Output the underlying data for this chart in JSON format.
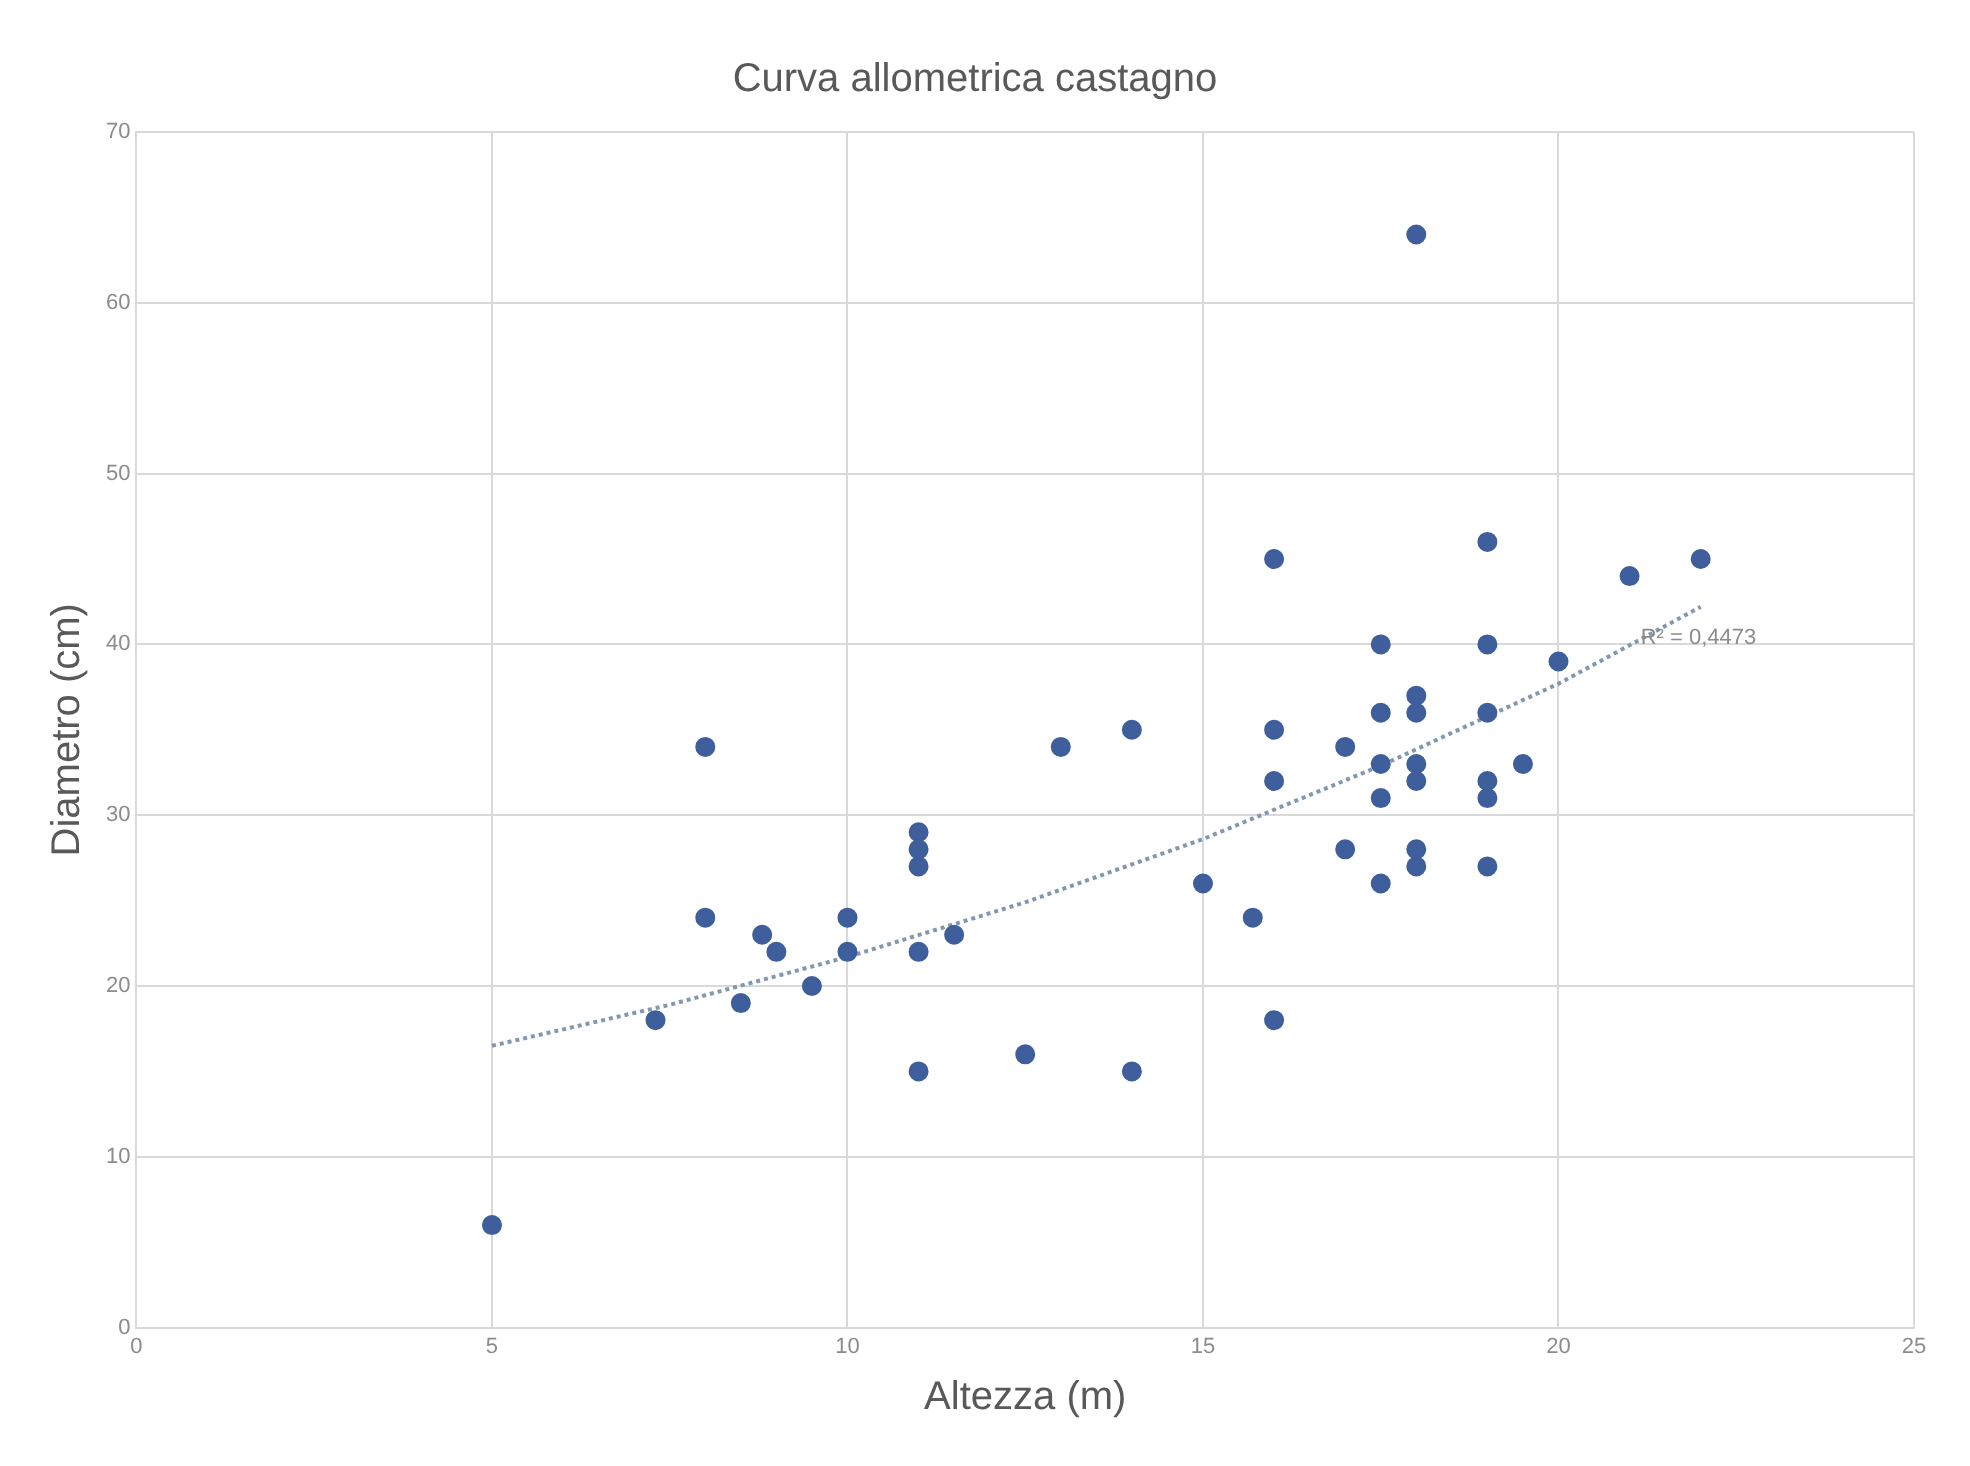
{
  "chart_data": {
    "type": "scatter",
    "title": "Curva allometrica castagno",
    "xlabel": "Altezza (m)",
    "ylabel": "Diametro (cm)",
    "xlim": [
      0,
      25
    ],
    "xticks": [
      0,
      5,
      10,
      15,
      20,
      25
    ],
    "ylim": [
      0,
      70
    ],
    "yticks": [
      0,
      10,
      20,
      30,
      40,
      50,
      60,
      70
    ],
    "grid": true,
    "legend": false,
    "marker": "circle",
    "series": [
      {
        "type": "scatter",
        "color": "#3e5e9c",
        "x": [
          5,
          7.3,
          8,
          8,
          8.5,
          8.8,
          9,
          9.5,
          10,
          10,
          11,
          11,
          11,
          11,
          11,
          11.5,
          12.5,
          13,
          14,
          14,
          15,
          15.7,
          16,
          16,
          16,
          16,
          17,
          17,
          17.5,
          17.5,
          17.5,
          17.5,
          17.5,
          18,
          18,
          18,
          18,
          18,
          18,
          18,
          19,
          19,
          19,
          19,
          19,
          19,
          19.5,
          20,
          21,
          22
        ],
        "values": [
          6,
          18,
          24,
          34,
          19,
          23,
          22,
          20,
          24,
          22,
          29,
          28,
          27,
          22,
          15,
          23,
          16,
          34,
          35,
          15,
          26,
          24,
          45,
          35,
          32,
          18,
          34,
          28,
          40,
          36,
          33,
          31,
          26,
          64,
          37,
          36,
          33,
          32,
          28,
          27,
          46,
          40,
          36,
          32,
          31,
          27,
          33,
          39,
          44,
          45
        ]
      },
      {
        "type": "line",
        "color": "#8497b0",
        "line_style": "dotted",
        "marker": "none",
        "x": [
          5,
          7.5,
          10,
          12.5,
          15,
          17.5,
          20,
          22
        ],
        "values": [
          16.5,
          18.9,
          21.7,
          24.9,
          28.6,
          32.9,
          37.7,
          42.2
        ]
      }
    ],
    "annotations": [
      "R² = 0,4473"
    ]
  }
}
